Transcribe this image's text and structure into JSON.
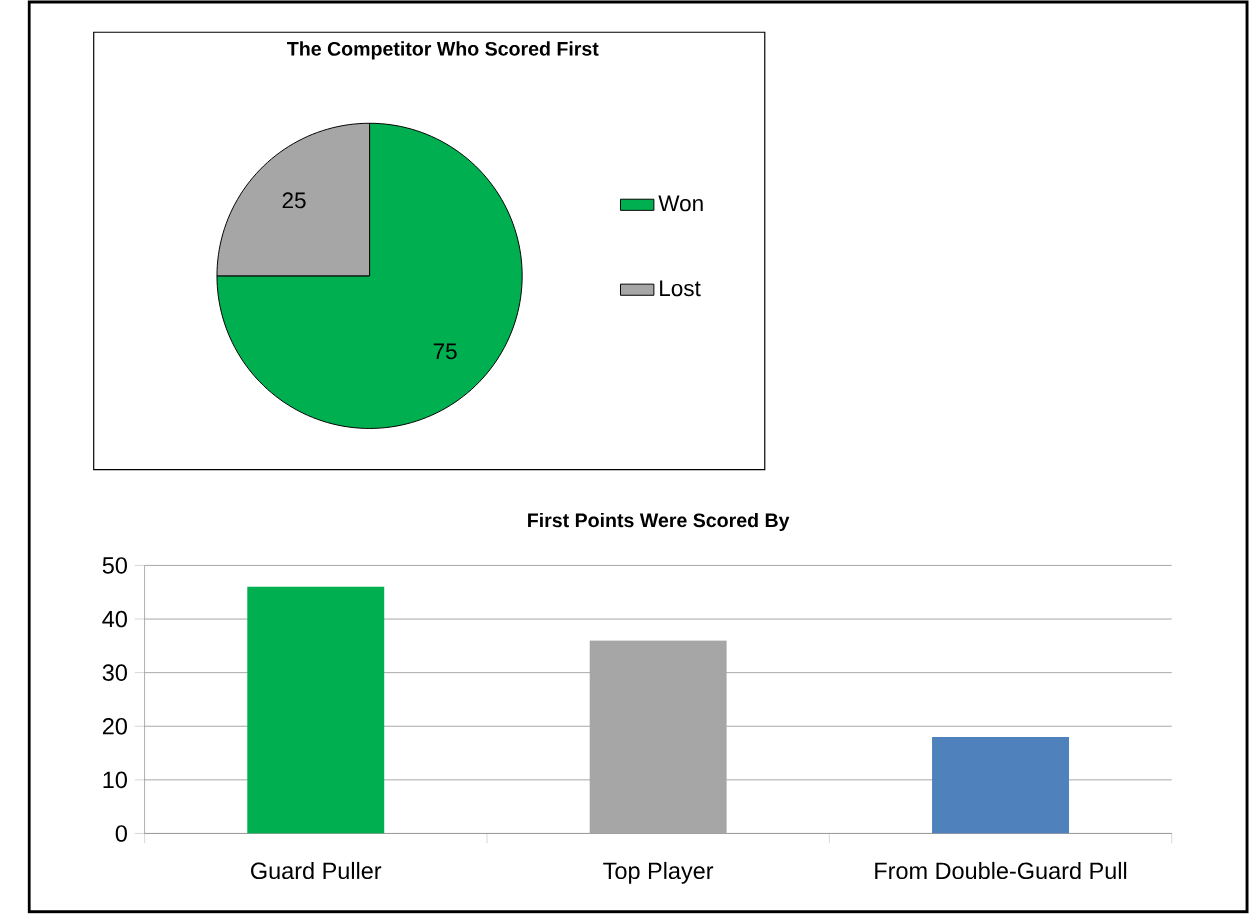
{
  "chart_data": [
    {
      "type": "pie",
      "title": "The Competitor Who Scored First",
      "categories": [
        "Won",
        "Lost"
      ],
      "values": [
        75,
        25
      ],
      "colors": [
        "#00b050",
        "#a6a6a6"
      ],
      "data_labels": true,
      "legend": "right"
    },
    {
      "type": "bar",
      "title": "First Points Were Scored By",
      "categories": [
        "Guard Puller",
        "Top Player",
        "From Double-Guard Pull"
      ],
      "values": [
        46,
        36,
        18
      ],
      "colors": [
        "#00b050",
        "#a6a6a6",
        "#4f81bd"
      ],
      "ylim": [
        0,
        50
      ],
      "yticks": [
        0,
        10,
        20,
        30,
        40,
        50
      ],
      "grid": "y"
    }
  ]
}
